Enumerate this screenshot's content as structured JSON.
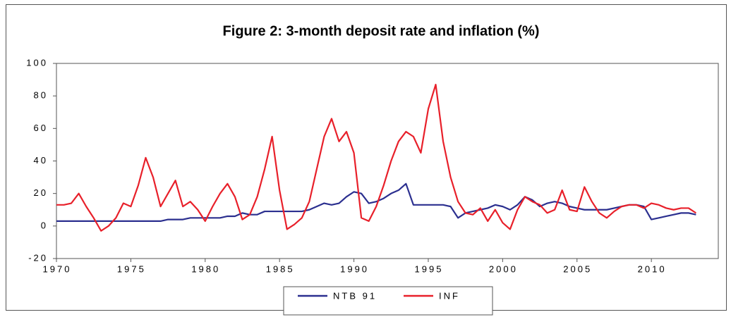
{
  "chart_data": {
    "type": "line",
    "title": "Figure 2: 3-month deposit rate and inflation (%)",
    "x": [
      1970,
      1970.5,
      1971,
      1971.5,
      1972,
      1972.5,
      1973,
      1973.5,
      1974,
      1974.5,
      1975,
      1975.5,
      1976,
      1976.5,
      1977,
      1977.5,
      1978,
      1978.5,
      1979,
      1979.5,
      1980,
      1980.5,
      1981,
      1981.5,
      1982,
      1982.5,
      1983,
      1983.5,
      1984,
      1984.5,
      1985,
      1985.5,
      1986,
      1986.5,
      1987,
      1987.5,
      1988,
      1988.5,
      1989,
      1989.5,
      1990,
      1990.5,
      1991,
      1991.5,
      1992,
      1992.5,
      1993,
      1993.5,
      1994,
      1994.5,
      1995,
      1995.5,
      1996,
      1996.5,
      1997,
      1997.5,
      1998,
      1998.5,
      1999,
      1999.5,
      2000,
      2000.5,
      2001,
      2001.5,
      2002,
      2002.5,
      2003,
      2003.5,
      2004,
      2004.5,
      2005,
      2005.5,
      2006,
      2006.5,
      2007,
      2007.5,
      2008,
      2008.5,
      2009,
      2009.5,
      2010,
      2010.5,
      2011,
      2011.5,
      2012,
      2012.5,
      2013
    ],
    "series": [
      {
        "name": "NTB 91",
        "color": "#2b2f8f",
        "values": [
          3,
          3,
          3,
          3,
          3,
          3,
          3,
          3,
          3,
          3,
          3,
          3,
          3,
          3,
          3,
          4,
          4,
          4,
          5,
          5,
          5,
          5,
          5,
          6,
          6,
          8,
          7,
          7,
          9,
          9,
          9,
          9,
          9,
          9,
          10,
          12,
          14,
          13,
          14,
          18,
          21,
          20,
          14,
          15,
          17,
          20,
          22,
          26,
          13,
          13,
          13,
          13,
          13,
          12,
          5,
          8,
          9,
          10,
          11,
          13,
          12,
          10,
          13,
          18,
          16,
          12,
          14,
          15,
          14,
          12,
          11,
          10,
          10,
          10,
          10,
          11,
          12,
          13,
          13,
          12,
          4,
          5,
          6,
          7,
          8,
          8,
          7
        ]
      },
      {
        "name": "INF",
        "color": "#e8202a",
        "values": [
          13,
          13,
          14,
          20,
          12,
          5,
          -3,
          0,
          5,
          14,
          12,
          25,
          42,
          30,
          12,
          20,
          28,
          12,
          15,
          10,
          3,
          12,
          20,
          26,
          18,
          4,
          7,
          18,
          35,
          55,
          22,
          -2,
          1,
          5,
          15,
          35,
          55,
          66,
          52,
          58,
          45,
          5,
          3,
          12,
          25,
          40,
          52,
          58,
          55,
          45,
          72,
          87,
          52,
          30,
          15,
          8,
          7,
          11,
          3,
          10,
          2,
          -2,
          10,
          18,
          15,
          13,
          8,
          10,
          22,
          10,
          9,
          24,
          15,
          8,
          5,
          9,
          12,
          13,
          13,
          11,
          14,
          13,
          11,
          10,
          11,
          11,
          8
        ]
      }
    ],
    "xlim": [
      1970,
      2014.5
    ],
    "xticks": [
      1970,
      1975,
      1980,
      1985,
      1990,
      1995,
      2000,
      2005,
      2010
    ],
    "ylim": [
      -20,
      100
    ],
    "yticks": [
      -20,
      0,
      20,
      40,
      60,
      80,
      100
    ],
    "grid": false,
    "legend": "bottom"
  }
}
